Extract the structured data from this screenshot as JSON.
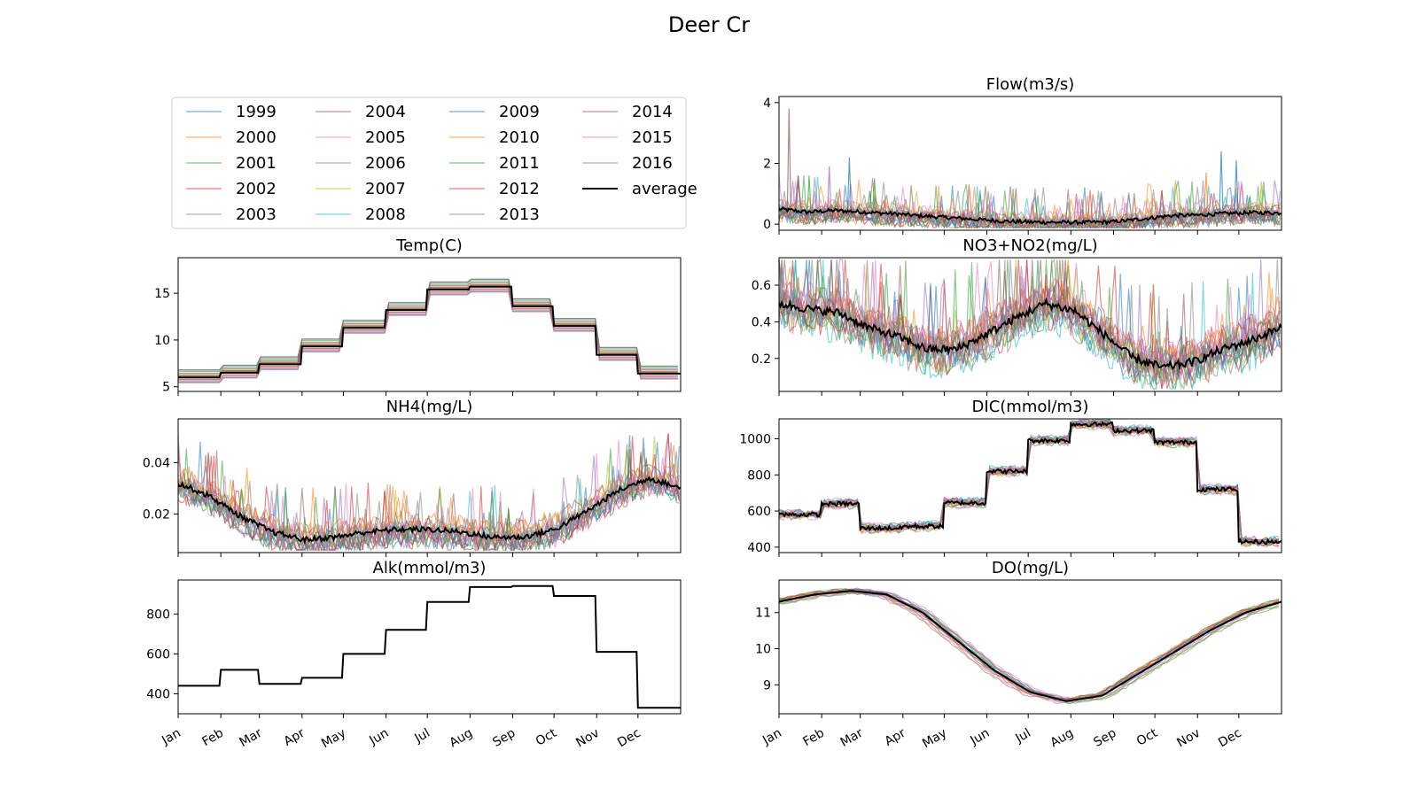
{
  "figure": {
    "title": "Deer Cr"
  },
  "legend": {
    "entries": [
      "1999",
      "2000",
      "2001",
      "2002",
      "2003",
      "2004",
      "2005",
      "2006",
      "2007",
      "2008",
      "2009",
      "2010",
      "2011",
      "2012",
      "2013",
      "2014",
      "2015",
      "2016",
      "average"
    ],
    "placement": "top-left panel, 4 columns"
  },
  "year_colors": [
    "#1f77b4",
    "#ff7f0e",
    "#2ca02c",
    "#d62728",
    "#9467bd",
    "#8c564b",
    "#e377c2",
    "#7f7f7f",
    "#bcbd22",
    "#17becf",
    "#1f77b4",
    "#ff7f0e",
    "#2ca02c",
    "#d62728",
    "#9467bd",
    "#8c564b",
    "#e377c2",
    "#7f7f7f"
  ],
  "average_color": "#000000",
  "month_ticks": [
    "Jan",
    "Feb",
    "Mar",
    "Apr",
    "May",
    "Jun",
    "Jul",
    "Aug",
    "Sep",
    "Oct",
    "Nov",
    "Dec"
  ],
  "chart_data": [
    {
      "type": "line",
      "title": "Flow(m3/s)",
      "pattern": "noisy",
      "ylim": [
        -0.2,
        4.2
      ],
      "yticks": [
        0,
        2,
        4
      ],
      "yticklabels": [
        "0",
        "2",
        "4"
      ],
      "average": [
        0.5,
        0.4,
        0.45,
        0.4,
        0.35,
        0.28,
        0.22,
        0.16,
        0.1,
        0.07,
        0.06,
        0.06,
        0.08,
        0.17,
        0.28,
        0.3,
        0.35,
        0.38,
        0.37
      ],
      "spread": 0.35,
      "spikes": [
        [
          0.02,
          3.8
        ],
        [
          0.06,
          1.6
        ],
        [
          0.1,
          1.9
        ],
        [
          0.14,
          2.2
        ],
        [
          0.19,
          1.5
        ],
        [
          0.88,
          2.4
        ],
        [
          0.91,
          2.1
        ],
        [
          0.85,
          1.7
        ],
        [
          0.96,
          1.4
        ]
      ]
    },
    {
      "type": "line",
      "title": "Temp(C)",
      "pattern": "step",
      "ylim": [
        4.5,
        18.8
      ],
      "yticks": [
        5,
        10,
        15
      ],
      "yticklabels": [
        "5",
        "10",
        "15"
      ],
      "average": [
        6.0,
        6.5,
        7.4,
        9.3,
        11.3,
        13.2,
        15.4,
        15.7,
        13.6,
        11.5,
        8.4,
        6.4
      ],
      "spread": 1.5
    },
    {
      "type": "line",
      "title": "NO3+NO2(mg/L)",
      "pattern": "noisy",
      "ylim": [
        0.02,
        0.75
      ],
      "yticks": [
        0.2,
        0.4,
        0.6
      ],
      "yticklabels": [
        "0.2",
        "0.4",
        "0.6"
      ],
      "average": [
        0.5,
        0.47,
        0.45,
        0.37,
        0.32,
        0.25,
        0.25,
        0.33,
        0.42,
        0.5,
        0.46,
        0.33,
        0.2,
        0.15,
        0.18,
        0.25,
        0.3,
        0.37
      ],
      "spread": 0.13,
      "clip_top": 0.74
    },
    {
      "type": "line",
      "title": "NH4(mg/L)",
      "pattern": "noisy",
      "ylim": [
        0.005,
        0.057
      ],
      "yticks": [
        0.02,
        0.04
      ],
      "yticklabels": [
        "0.02",
        "0.04"
      ],
      "average": [
        0.032,
        0.027,
        0.019,
        0.013,
        0.01,
        0.011,
        0.013,
        0.014,
        0.014,
        0.013,
        0.011,
        0.011,
        0.014,
        0.021,
        0.029,
        0.034,
        0.03
      ],
      "spread": 0.006,
      "clip_top": 0.056
    },
    {
      "type": "line",
      "title": "DIC(mmol/m3)",
      "pattern": "step-noisy",
      "ylim": [
        370,
        1110
      ],
      "yticks": [
        400,
        600,
        800,
        1000
      ],
      "yticklabels": [
        "400",
        "600",
        "800",
        "1000"
      ],
      "average": [
        580,
        640,
        505,
        515,
        645,
        820,
        990,
        1080,
        1045,
        980,
        720,
        430
      ],
      "spread": 45
    },
    {
      "type": "line",
      "title": "Alk(mmol/m3)",
      "pattern": "step-flat",
      "ylim": [
        300,
        970
      ],
      "yticks": [
        400,
        600,
        800
      ],
      "yticklabels": [
        "400",
        "600",
        "800"
      ],
      "average": [
        440,
        520,
        450,
        480,
        600,
        720,
        860,
        935,
        940,
        890,
        610,
        330
      ],
      "spread": 0
    },
    {
      "type": "line",
      "title": "DO(mg/L)",
      "pattern": "smooth",
      "ylim": [
        8.2,
        11.9
      ],
      "yticks": [
        9,
        10,
        11
      ],
      "yticklabels": [
        "9",
        "10",
        "11"
      ],
      "average": [
        11.3,
        11.5,
        11.6,
        11.5,
        11.0,
        10.2,
        9.4,
        8.8,
        8.55,
        8.7,
        9.3,
        9.9,
        10.5,
        11.0,
        11.3
      ],
      "spread": 0.12
    }
  ]
}
